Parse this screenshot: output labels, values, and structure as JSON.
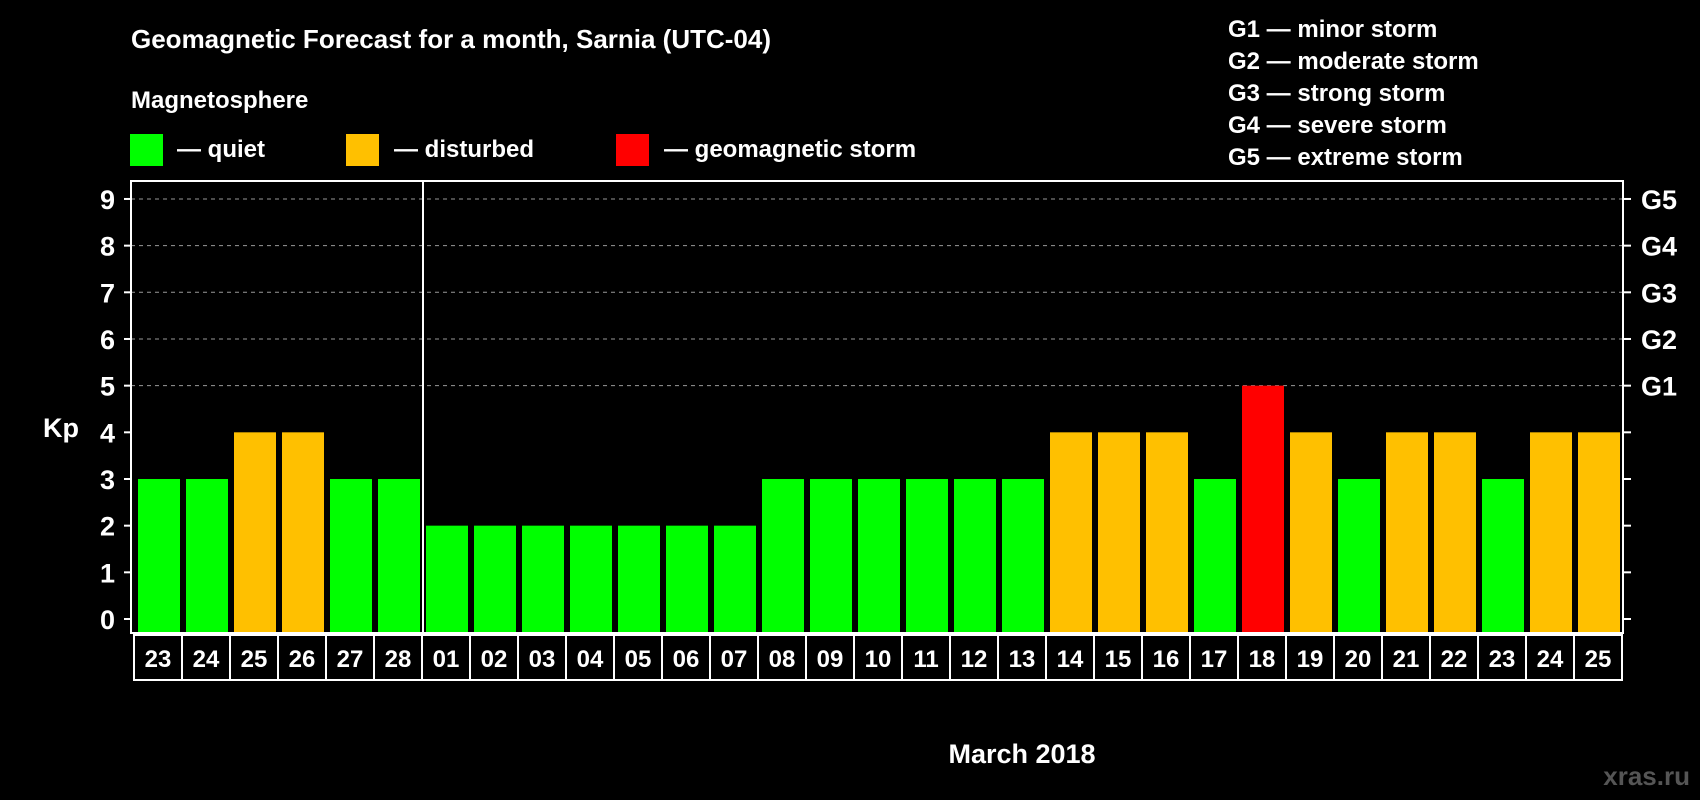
{
  "chart_data": {
    "type": "bar",
    "title": "Geomagnetic Forecast for a month, Sarnia (UTC-04)",
    "legend_title": "Magnetosphere",
    "legend": [
      {
        "key": "quiet",
        "label": "— quiet",
        "color": "#00ff00"
      },
      {
        "key": "disturbed",
        "label": "— disturbed",
        "color": "#ffc000"
      },
      {
        "key": "storm",
        "label": "— geomagnetic storm",
        "color": "#ff0000"
      }
    ],
    "storm_scale": [
      "G1 — minor storm",
      "G2 — moderate storm",
      "G3 — strong storm",
      "G4 — severe storm",
      "G5 — extreme storm"
    ],
    "ylabel": "Kp",
    "xlabel": "March 2018",
    "ylim": [
      0,
      9
    ],
    "yticks": [
      "0",
      "1",
      "2",
      "3",
      "4",
      "5",
      "6",
      "7",
      "8",
      "9"
    ],
    "right_labels": [
      {
        "value": 5,
        "label": "G1"
      },
      {
        "value": 6,
        "label": "G2"
      },
      {
        "value": 7,
        "label": "G3"
      },
      {
        "value": 8,
        "label": "G4"
      },
      {
        "value": 9,
        "label": "G5"
      }
    ],
    "grid": "dashed at 5-9",
    "month_separator_after_index": 5,
    "categories": [
      "23",
      "24",
      "25",
      "26",
      "27",
      "28",
      "01",
      "02",
      "03",
      "04",
      "05",
      "06",
      "07",
      "08",
      "09",
      "10",
      "11",
      "12",
      "13",
      "14",
      "15",
      "16",
      "17",
      "18",
      "19",
      "20",
      "21",
      "22",
      "23",
      "24",
      "25"
    ],
    "values": [
      3,
      3,
      4,
      4,
      3,
      3,
      2,
      2,
      2,
      2,
      2,
      2,
      2,
      3,
      3,
      3,
      3,
      3,
      3,
      4,
      4,
      4,
      3,
      5,
      4,
      3,
      4,
      4,
      3,
      4,
      4
    ]
  },
  "watermark": "xras.ru"
}
